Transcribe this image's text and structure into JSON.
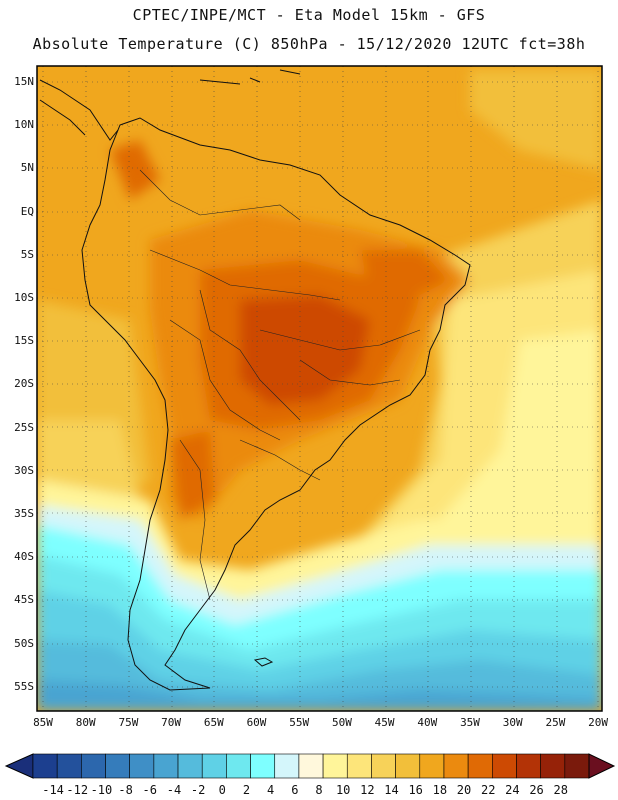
{
  "header": {
    "line1": "CPTEC/INPE/MCT -  Eta Model 15km - GFS",
    "line2": "Absolute Temperature (C) 850hPa - 15/12/2020 12UTC fct=38h"
  },
  "map": {
    "lat_labels": [
      "15N",
      "10N",
      "5N",
      "EQ",
      "5S",
      "10S",
      "15S",
      "20S",
      "25S",
      "30S",
      "35S",
      "40S",
      "45S",
      "50S",
      "55S"
    ],
    "lon_labels": [
      "85W",
      "80W",
      "75W",
      "70W",
      "65W",
      "60W",
      "55W",
      "50W",
      "45W",
      "40W",
      "35W",
      "30W",
      "25W",
      "20W"
    ]
  },
  "colorbar": {
    "labels": [
      "-14",
      "-12",
      "-10",
      "-8",
      "-6",
      "-4",
      "-2",
      "0",
      "2",
      "4",
      "6",
      "8",
      "10",
      "12",
      "14",
      "16",
      "18",
      "20",
      "22",
      "24",
      "26",
      "28"
    ],
    "colors": [
      "#1c3f8f",
      "#23519c",
      "#2c67ad",
      "#357cbb",
      "#3f8fc6",
      "#49a4d1",
      "#55bbdc",
      "#5fd1e6",
      "#6ee8ef",
      "#7effff",
      "#d4f6fb",
      "#fff8dc",
      "#fff59a",
      "#fde57a",
      "#f7d259",
      "#f2bf3a",
      "#f0a71e",
      "#eb8a0f",
      "#e06a05",
      "#cd4a03",
      "#b33306",
      "#962208",
      "#7a1a0c"
    ],
    "low_arrow_color": "#1a2f7a",
    "high_arrow_color": "#6a0f1f"
  }
}
